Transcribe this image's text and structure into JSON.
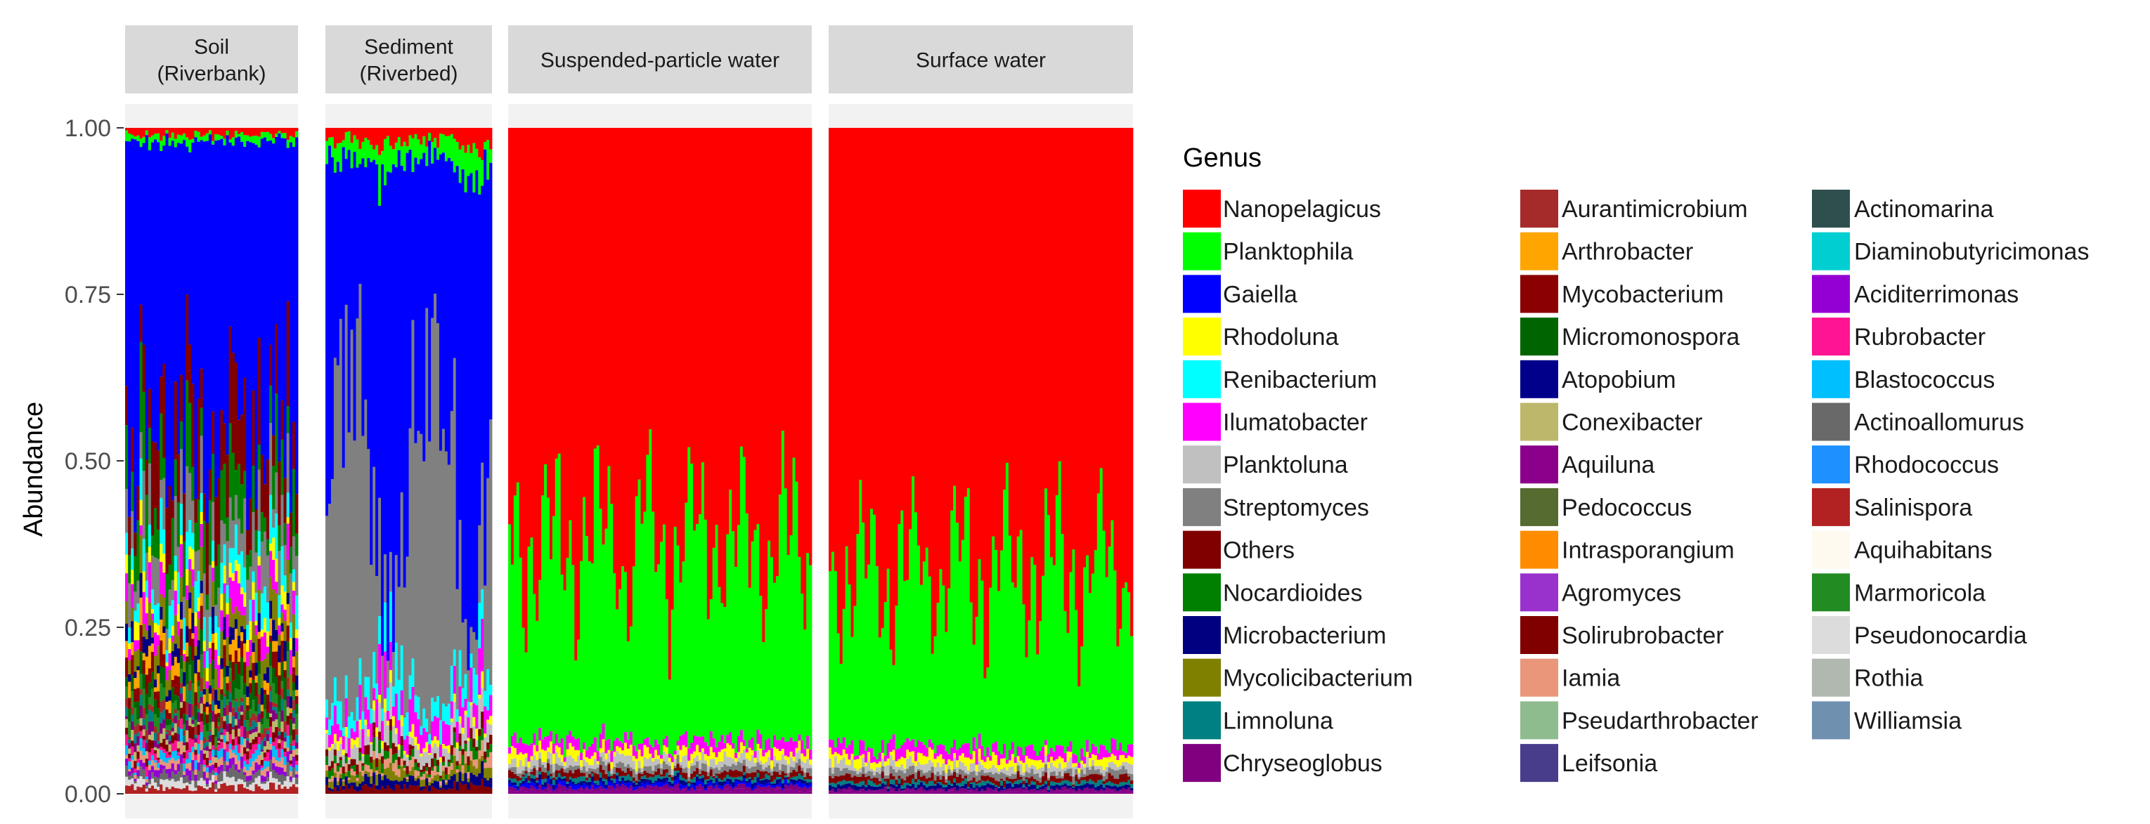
{
  "chart_data": {
    "type": "bar",
    "stacked": true,
    "facets": [
      {
        "label_lines": [
          "Soil",
          "(Riverbank)"
        ],
        "n_samples": 60,
        "profile": {
          "Nanopelagicus": 0.01,
          "Planktophila": 0.01,
          "Gaiella": 0.48,
          "Others": 0.09,
          "Nocardioides": 0.07,
          "Streptomyces": 0.06,
          "Renibacterium": 0.04,
          "Rhodoluna": 0.02,
          "Ilumatobacter": 0.03,
          "Mycolicibacterium": 0.03,
          "Microbacterium": 0.02,
          "Arthrobacter": 0.02,
          "Mycobacterium": 0.02,
          "Micromonospora": 0.02,
          "Marmoricola": 0.02,
          "Aurantimicrobium": 0.01,
          "Limnoluna": 0.01,
          "Chryseoglobus": 0.01,
          "Conexibacter": 0.01,
          "Solirubrobacter": 0.01,
          "Rubrobacter": 0.01,
          "Blastococcus": 0.01,
          "Iamia": 0.01,
          "Aciditerrimonas": 0.01,
          "Actinoallomurus": 0.01,
          "Pseudonocardia": 0.01,
          "Salinispora": 0.01
        }
      },
      {
        "label_lines": [
          "Sediment",
          "(Riverbed)"
        ],
        "n_samples": 60,
        "profile": {
          "Nanopelagicus": 0.02,
          "Planktophila": 0.03,
          "Gaiella": 0.46,
          "Streptomyces": 0.33,
          "Renibacterium": 0.03,
          "Ilumatobacter": 0.03,
          "Rhodoluna": 0.01,
          "Planktoluna": 0.02,
          "Others": 0.01,
          "Nocardioides": 0.01,
          "Iamia": 0.01,
          "Mycolicibacterium": 0.01,
          "Microbacterium": 0.01,
          "Solirubrobacter": 0.01
        }
      },
      {
        "label_lines": [
          "Suspended-particle water"
        ],
        "n_samples": 110,
        "profile": {
          "Nanopelagicus": 0.62,
          "Planktophila": 0.3,
          "Ilumatobacter": 0.015,
          "Rhodoluna": 0.012,
          "Planktoluna": 0.012,
          "Streptomyces": 0.008,
          "Others": 0.008,
          "Limnoluna": 0.005,
          "Microbacterium": 0.005,
          "Gaiella": 0.005,
          "Chryseoglobus": 0.005,
          "Aquiluna": 0.005
        }
      },
      {
        "label_lines": [
          "Surface water"
        ],
        "n_samples": 110,
        "profile": {
          "Nanopelagicus": 0.66,
          "Planktophila": 0.27,
          "Ilumatobacter": 0.015,
          "Rhodoluna": 0.012,
          "Planktoluna": 0.01,
          "Streptomyces": 0.008,
          "Others": 0.008,
          "Limnoluna": 0.005,
          "Microbacterium": 0.005,
          "Chryseoglobus": 0.004,
          "Aquiluna": 0.003
        }
      }
    ],
    "ylabel": "Abundance",
    "ylim": [
      0,
      1
    ],
    "y_ticks": [
      "0.00",
      "0.25",
      "0.50",
      "0.75",
      "1.00"
    ],
    "legend": {
      "title": "Genus",
      "placement": "right",
      "entries": [
        {
          "name": "Nanopelagicus",
          "color": "#FF0000"
        },
        {
          "name": "Planktophila",
          "color": "#00FF00"
        },
        {
          "name": "Gaiella",
          "color": "#0000FF"
        },
        {
          "name": "Rhodoluna",
          "color": "#FFFF00"
        },
        {
          "name": "Renibacterium",
          "color": "#00FFFF"
        },
        {
          "name": "Ilumatobacter",
          "color": "#FF00FF"
        },
        {
          "name": "Planktoluna",
          "color": "#C0C0C0"
        },
        {
          "name": "Streptomyces",
          "color": "#808080"
        },
        {
          "name": "Others",
          "color": "#800000"
        },
        {
          "name": "Nocardioides",
          "color": "#008000"
        },
        {
          "name": "Microbacterium",
          "color": "#000080"
        },
        {
          "name": "Mycolicibacterium",
          "color": "#808000"
        },
        {
          "name": "Limnoluna",
          "color": "#008080"
        },
        {
          "name": "Chryseoglobus",
          "color": "#800080"
        },
        {
          "name": "Aurantimicrobium",
          "color": "#A52A2A"
        },
        {
          "name": "Arthrobacter",
          "color": "#FFA500"
        },
        {
          "name": "Mycobacterium",
          "color": "#8B0000"
        },
        {
          "name": "Micromonospora",
          "color": "#006400"
        },
        {
          "name": "Atopobium",
          "color": "#00008B"
        },
        {
          "name": "Conexibacter",
          "color": "#BDB76B"
        },
        {
          "name": "Aquiluna",
          "color": "#8B008B"
        },
        {
          "name": "Pedococcus",
          "color": "#556B2F"
        },
        {
          "name": "Intrasporangium",
          "color": "#FF8C00"
        },
        {
          "name": "Agromyces",
          "color": "#9932CC"
        },
        {
          "name": "Solirubrobacter",
          "color": "#800000"
        },
        {
          "name": "Iamia",
          "color": "#E9967A"
        },
        {
          "name": "Pseudarthrobacter",
          "color": "#8FBC8F"
        },
        {
          "name": "Leifsonia",
          "color": "#483D8B"
        },
        {
          "name": "Actinomarina",
          "color": "#2F4F4F"
        },
        {
          "name": "Diaminobutyricimonas",
          "color": "#00CED1"
        },
        {
          "name": "Aciditerrimonas",
          "color": "#9400D3"
        },
        {
          "name": "Rubrobacter",
          "color": "#FF1493"
        },
        {
          "name": "Blastococcus",
          "color": "#00BFFF"
        },
        {
          "name": "Actinoallomurus",
          "color": "#696969"
        },
        {
          "name": "Rhodococcus",
          "color": "#1E90FF"
        },
        {
          "name": "Salinispora",
          "color": "#B22222"
        },
        {
          "name": "Aquihabitans",
          "color": "#FFFAF0"
        },
        {
          "name": "Marmoricola",
          "color": "#228B22"
        },
        {
          "name": "Pseudonocardia",
          "color": "#DCDCDC"
        },
        {
          "name": "Rothia",
          "color": "#B0B8B0"
        },
        {
          "name": "Williamsia",
          "color": "#7090B0"
        }
      ]
    }
  }
}
